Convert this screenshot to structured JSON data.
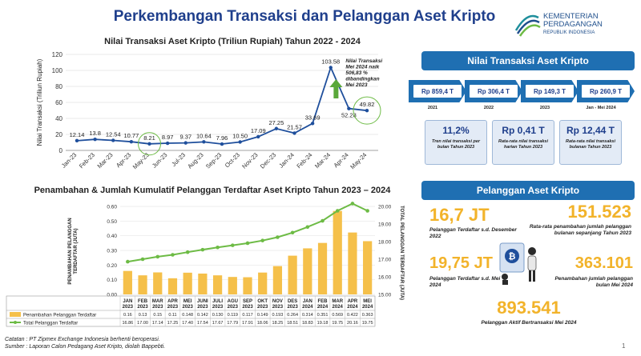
{
  "header": {
    "title": "Perkembangan Transaksi dan Pelanggan Aset Kripto",
    "logo_line1": "KEMENTERIAN",
    "logo_line2": "PERDAGANGAN",
    "logo_line3": "REPUBLIK INDONESIA"
  },
  "chart_data": [
    {
      "type": "line",
      "title": "Nilai Transaksi Aset Kripto (Triliun Rupiah) Tahun 2022 - 2024",
      "ylabel": "Nilai Transaksi (Triliun Rupiah)",
      "ylim": [
        0,
        120
      ],
      "yticks": [
        "0",
        "20",
        "40",
        "60",
        "80",
        "100",
        "120"
      ],
      "categories": [
        "Jan-23",
        "Feb-23",
        "Mar-23",
        "Apr-23",
        "May-23",
        "Jun-23",
        "Jul-23",
        "Aug-23",
        "Sep-23",
        "Oct-23",
        "Nov-23",
        "Dec-23",
        "Jan-24",
        "Feb-24",
        "Mar-24",
        "Apr-24",
        "May-24"
      ],
      "values": [
        12.14,
        13.8,
        12.54,
        10.77,
        8.21,
        8.97,
        9.37,
        10.64,
        7.96,
        10.5,
        17.09,
        27.25,
        21.57,
        33.69,
        103.58,
        52.28,
        49.82
      ],
      "labels": [
        "12.14",
        "13.8",
        "12.54",
        "10.77",
        "8.21",
        "8.97",
        "9.37",
        "10.64",
        "7.96",
        "10.50",
        "17.09",
        "27.25",
        "21.57",
        "33.69",
        "103.58",
        "52.28",
        "49.82"
      ],
      "annotation": "Nilai Transaksi Mei 2024 naik 506,83 % dibandingkan Mei 2023",
      "color": "#1f4f9c",
      "grid": true
    },
    {
      "type": "bar+line",
      "title": "Penambahan & Jumlah Kumulatif Pelanggan Terdaftar Aset Kripto Tahun 2023 – 2024",
      "ylabel_left": "PENAMBAHAN PELANGGAN TERDAFTAR (JUTA)",
      "ylabel_right": "TOTAL PELANGGAN TERDAFTAR (JUTA)",
      "ylim_left": [
        0,
        0.6
      ],
      "ylim_right": [
        15.0,
        20.0
      ],
      "yticks_left": [
        "0.00",
        "0.10",
        "0.20",
        "0.30",
        "0.40",
        "0.50",
        "0.60"
      ],
      "yticks_right": [
        "15.00",
        "16.00",
        "17.00",
        "18.00",
        "19.00",
        "20.00"
      ],
      "categories": [
        [
          "JAN",
          "2023"
        ],
        [
          "FEB",
          "2023"
        ],
        [
          "MAR",
          "2023"
        ],
        [
          "APR",
          "2023"
        ],
        [
          "MEI",
          "2023"
        ],
        [
          "JUNI",
          "2023"
        ],
        [
          "JULI",
          "2023"
        ],
        [
          "AGU",
          "2023"
        ],
        [
          "SEP",
          "2023"
        ],
        [
          "OKT",
          "2023"
        ],
        [
          "NOV",
          "2023"
        ],
        [
          "DES",
          "2023"
        ],
        [
          "JAN",
          "2024"
        ],
        [
          "FEB",
          "2024"
        ],
        [
          "MAR",
          "2024"
        ],
        [
          "APR",
          "2024"
        ],
        [
          "MEI",
          "2024"
        ]
      ],
      "series": [
        {
          "name": "Penambahan Pelanggan Terdaftar",
          "type": "bar",
          "color": "#f5c04a",
          "values": [
            0.16,
            0.13,
            0.15,
            0.11,
            0.148,
            0.142,
            0.13,
            0.119,
            0.117,
            0.149,
            0.193,
            0.264,
            0.314,
            0.351,
            0.569,
            0.422,
            0.363
          ],
          "labels": [
            "0.16",
            "0.13",
            "0.15",
            "0.11",
            "0.148",
            "0.142",
            "0.130",
            "0.119",
            "0.117",
            "0.149",
            "0.193",
            "0.264",
            "0.314",
            "0.351",
            "0.569",
            "0.422",
            "0.363"
          ]
        },
        {
          "name": "Total Pelanggan Terdaftar",
          "type": "line",
          "color": "#6dbb45",
          "values": [
            16.86,
            17.0,
            17.14,
            17.25,
            17.4,
            17.54,
            17.67,
            17.79,
            17.91,
            18.06,
            18.25,
            18.51,
            18.83,
            19.18,
            19.75,
            20.16,
            19.75
          ],
          "labels": [
            "16.86",
            "17.00",
            "17.14",
            "17.25",
            "17.40",
            "17.54",
            "17.67",
            "17.79",
            "17.91",
            "18.06",
            "18.25",
            "18.51",
            "18.83",
            "19.18",
            "19.75",
            "20.16",
            "19.75"
          ]
        }
      ]
    }
  ],
  "panel_transaksi": {
    "title": "Nilai Transaksi Aset Kripto",
    "arrows": [
      {
        "value": "Rp 859,4 T",
        "year": "2021"
      },
      {
        "value": "Rp 306,4 T",
        "year": "2022"
      },
      {
        "value": "Rp 149,3 T",
        "year": "2023"
      },
      {
        "value": "Rp 260,9 T",
        "year": "Jan - Mei 2024"
      }
    ],
    "stats": [
      {
        "big": "11,2%",
        "small": "Tren nilai transaksi per bulan Tahun 2023"
      },
      {
        "big": "Rp 0,41 T",
        "small": "Rata-rata nilai transaksi harian Tahun 2023"
      },
      {
        "big": "Rp 12,44 T",
        "small": "Rata-rata nilai transaksi bulanan Tahun 2023"
      }
    ]
  },
  "panel_pelanggan": {
    "title": "Pelanggan Aset Kripto",
    "items": [
      {
        "big": "16,7 JT",
        "cap": "Pelanggan Terdaftar s.d. Desember 2022"
      },
      {
        "big": "151.523",
        "cap": "Rata-rata penambahan jumlah pelanggan bulanan sepanjang Tahun 2023"
      },
      {
        "big": "19,75 JT",
        "cap": "Pelanggan Terdaftar s.d. Mei 2024"
      },
      {
        "big": "363.101",
        "cap": "Penambahan jumlah pelanggan bulan Mei 2024"
      },
      {
        "big": "893.541",
        "cap": "Pelanggan Aktif Bertransaksi Mei 2024"
      }
    ]
  },
  "footer": {
    "line1": "Catatan : PT Zipmex Exchange Indonesia berhenti beroperasi.",
    "line2": "Sumber : Laporan Calon Pedagang Aset Kripto, diolah Bappebti.",
    "page": "1"
  },
  "colors": {
    "brand": "#1f3f8c",
    "panel": "#1f6fb2",
    "accent": "#f2b32a",
    "line_green": "#6dbb45"
  }
}
